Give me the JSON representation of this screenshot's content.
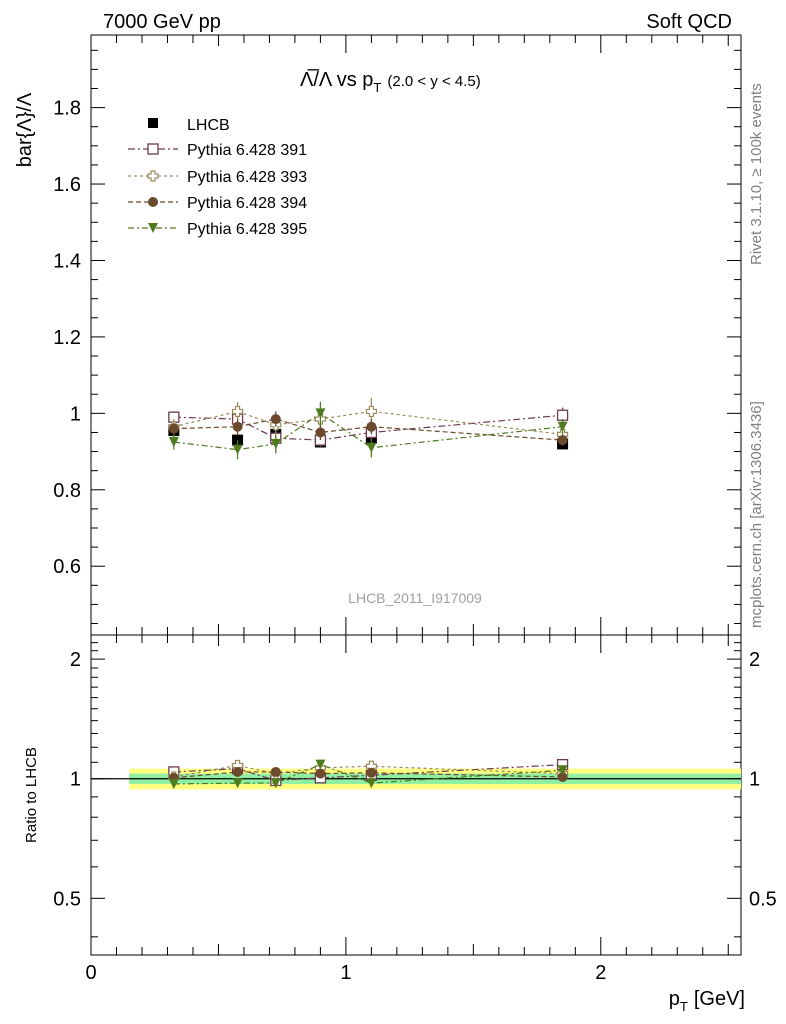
{
  "header": {
    "left": "7000 GeV pp",
    "right": "Soft QCD"
  },
  "side_labels": {
    "rivet": "Rivet 3.1.10, ≥ 100k events",
    "mcplots": "mcplots.cern.ch [arXiv:1306.3436]"
  },
  "watermark": "LHCB_2011_I917009",
  "colors": {
    "lhcb": "#000000",
    "p391": "#6e3b52",
    "p393": "#9a8a5a",
    "p394": "#6b4a2e",
    "p395": "#4f7a1e",
    "band_inner": "#8ff0a4",
    "band_outer": "#ffff80"
  },
  "chart_data": [
    {
      "type": "scatter",
      "title_main": "Λ̅/Λ vs p",
      "title_sub": "T",
      "title_range": "(2.0 < y < 4.5)",
      "ylabel": "bar{Λ}/Λ",
      "xlim": [
        0,
        2.55
      ],
      "ylim": [
        0.42,
        1.99
      ],
      "yticks": [
        0.6,
        0.8,
        1.0,
        1.2,
        1.4,
        1.6,
        1.8
      ],
      "ytick_labels": [
        "0.6",
        "0.8",
        "1",
        "1.2",
        "1.4",
        "1.6",
        "1.8"
      ],
      "legend_position": "top-left",
      "x": [
        0.325,
        0.575,
        0.725,
        0.9,
        1.1,
        1.85
      ],
      "series": [
        {
          "name": "LHCB",
          "key": "lhcb",
          "marker": "square-filled",
          "values": [
            0.955,
            0.93,
            0.945,
            0.925,
            0.935,
            0.92
          ],
          "errors": [
            0.01,
            0.01,
            0.01,
            0.01,
            0.01,
            0.01
          ]
        },
        {
          "name": "Pythia 6.428 391",
          "key": "p391",
          "marker": "square-open",
          "values": [
            0.99,
            0.985,
            0.935,
            0.93,
            0.95,
            0.995
          ],
          "errors": [
            0.015,
            0.02,
            0.02,
            0.02,
            0.02,
            0.02
          ]
        },
        {
          "name": "Pythia 6.428 393",
          "key": "p393",
          "marker": "cross-open",
          "values": [
            0.965,
            1.005,
            0.97,
            0.985,
            1.005,
            0.945
          ],
          "errors": [
            0.02,
            0.025,
            0.025,
            0.025,
            0.035,
            0.025
          ]
        },
        {
          "name": "Pythia 6.428 394",
          "key": "p394",
          "marker": "circle-filled",
          "values": [
            0.96,
            0.965,
            0.985,
            0.95,
            0.965,
            0.93
          ],
          "errors": [
            0.015,
            0.02,
            0.02,
            0.02,
            0.02,
            0.015
          ]
        },
        {
          "name": "Pythia 6.428 395",
          "key": "p395",
          "marker": "triangle-down",
          "values": [
            0.925,
            0.905,
            0.92,
            1.0,
            0.91,
            0.965
          ],
          "errors": [
            0.02,
            0.025,
            0.025,
            0.03,
            0.025,
            0.02
          ]
        }
      ]
    },
    {
      "type": "scatter",
      "ylabel": "Ratio to LHCB",
      "xlabel_main": "p",
      "xlabel_sub": "T",
      "xlabel_unit": "[GeV]",
      "xlim": [
        0,
        2.55
      ],
      "ylim": [
        0.36,
        2.3
      ],
      "log_y": true,
      "yticks": [
        0.5,
        1,
        2
      ],
      "ytick_labels": [
        "0.5",
        "1",
        "2"
      ],
      "xticks": [
        0,
        1,
        2
      ],
      "xtick_labels": [
        "0",
        "1",
        "2"
      ],
      "band": {
        "x_range": [
          0.15,
          2.55
        ],
        "outer": [
          0.94,
          1.06
        ],
        "inner": [
          0.97,
          1.03
        ]
      },
      "x": [
        0.325,
        0.575,
        0.725,
        0.9,
        1.1,
        1.85
      ],
      "series": [
        {
          "name": "Pythia 6.428 391",
          "key": "p391",
          "marker": "square-open",
          "values": [
            1.04,
            1.06,
            0.99,
            1.005,
            1.02,
            1.085
          ]
        },
        {
          "name": "Pythia 6.428 393",
          "key": "p393",
          "marker": "cross-open",
          "values": [
            1.01,
            1.08,
            1.03,
            1.065,
            1.075,
            1.03
          ]
        },
        {
          "name": "Pythia 6.428 394",
          "key": "p394",
          "marker": "circle-filled",
          "values": [
            1.005,
            1.04,
            1.04,
            1.03,
            1.035,
            1.01
          ]
        },
        {
          "name": "Pythia 6.428 395",
          "key": "p395",
          "marker": "triangle-down",
          "values": [
            0.97,
            0.975,
            0.975,
            1.085,
            0.975,
            1.05
          ]
        }
      ]
    }
  ]
}
